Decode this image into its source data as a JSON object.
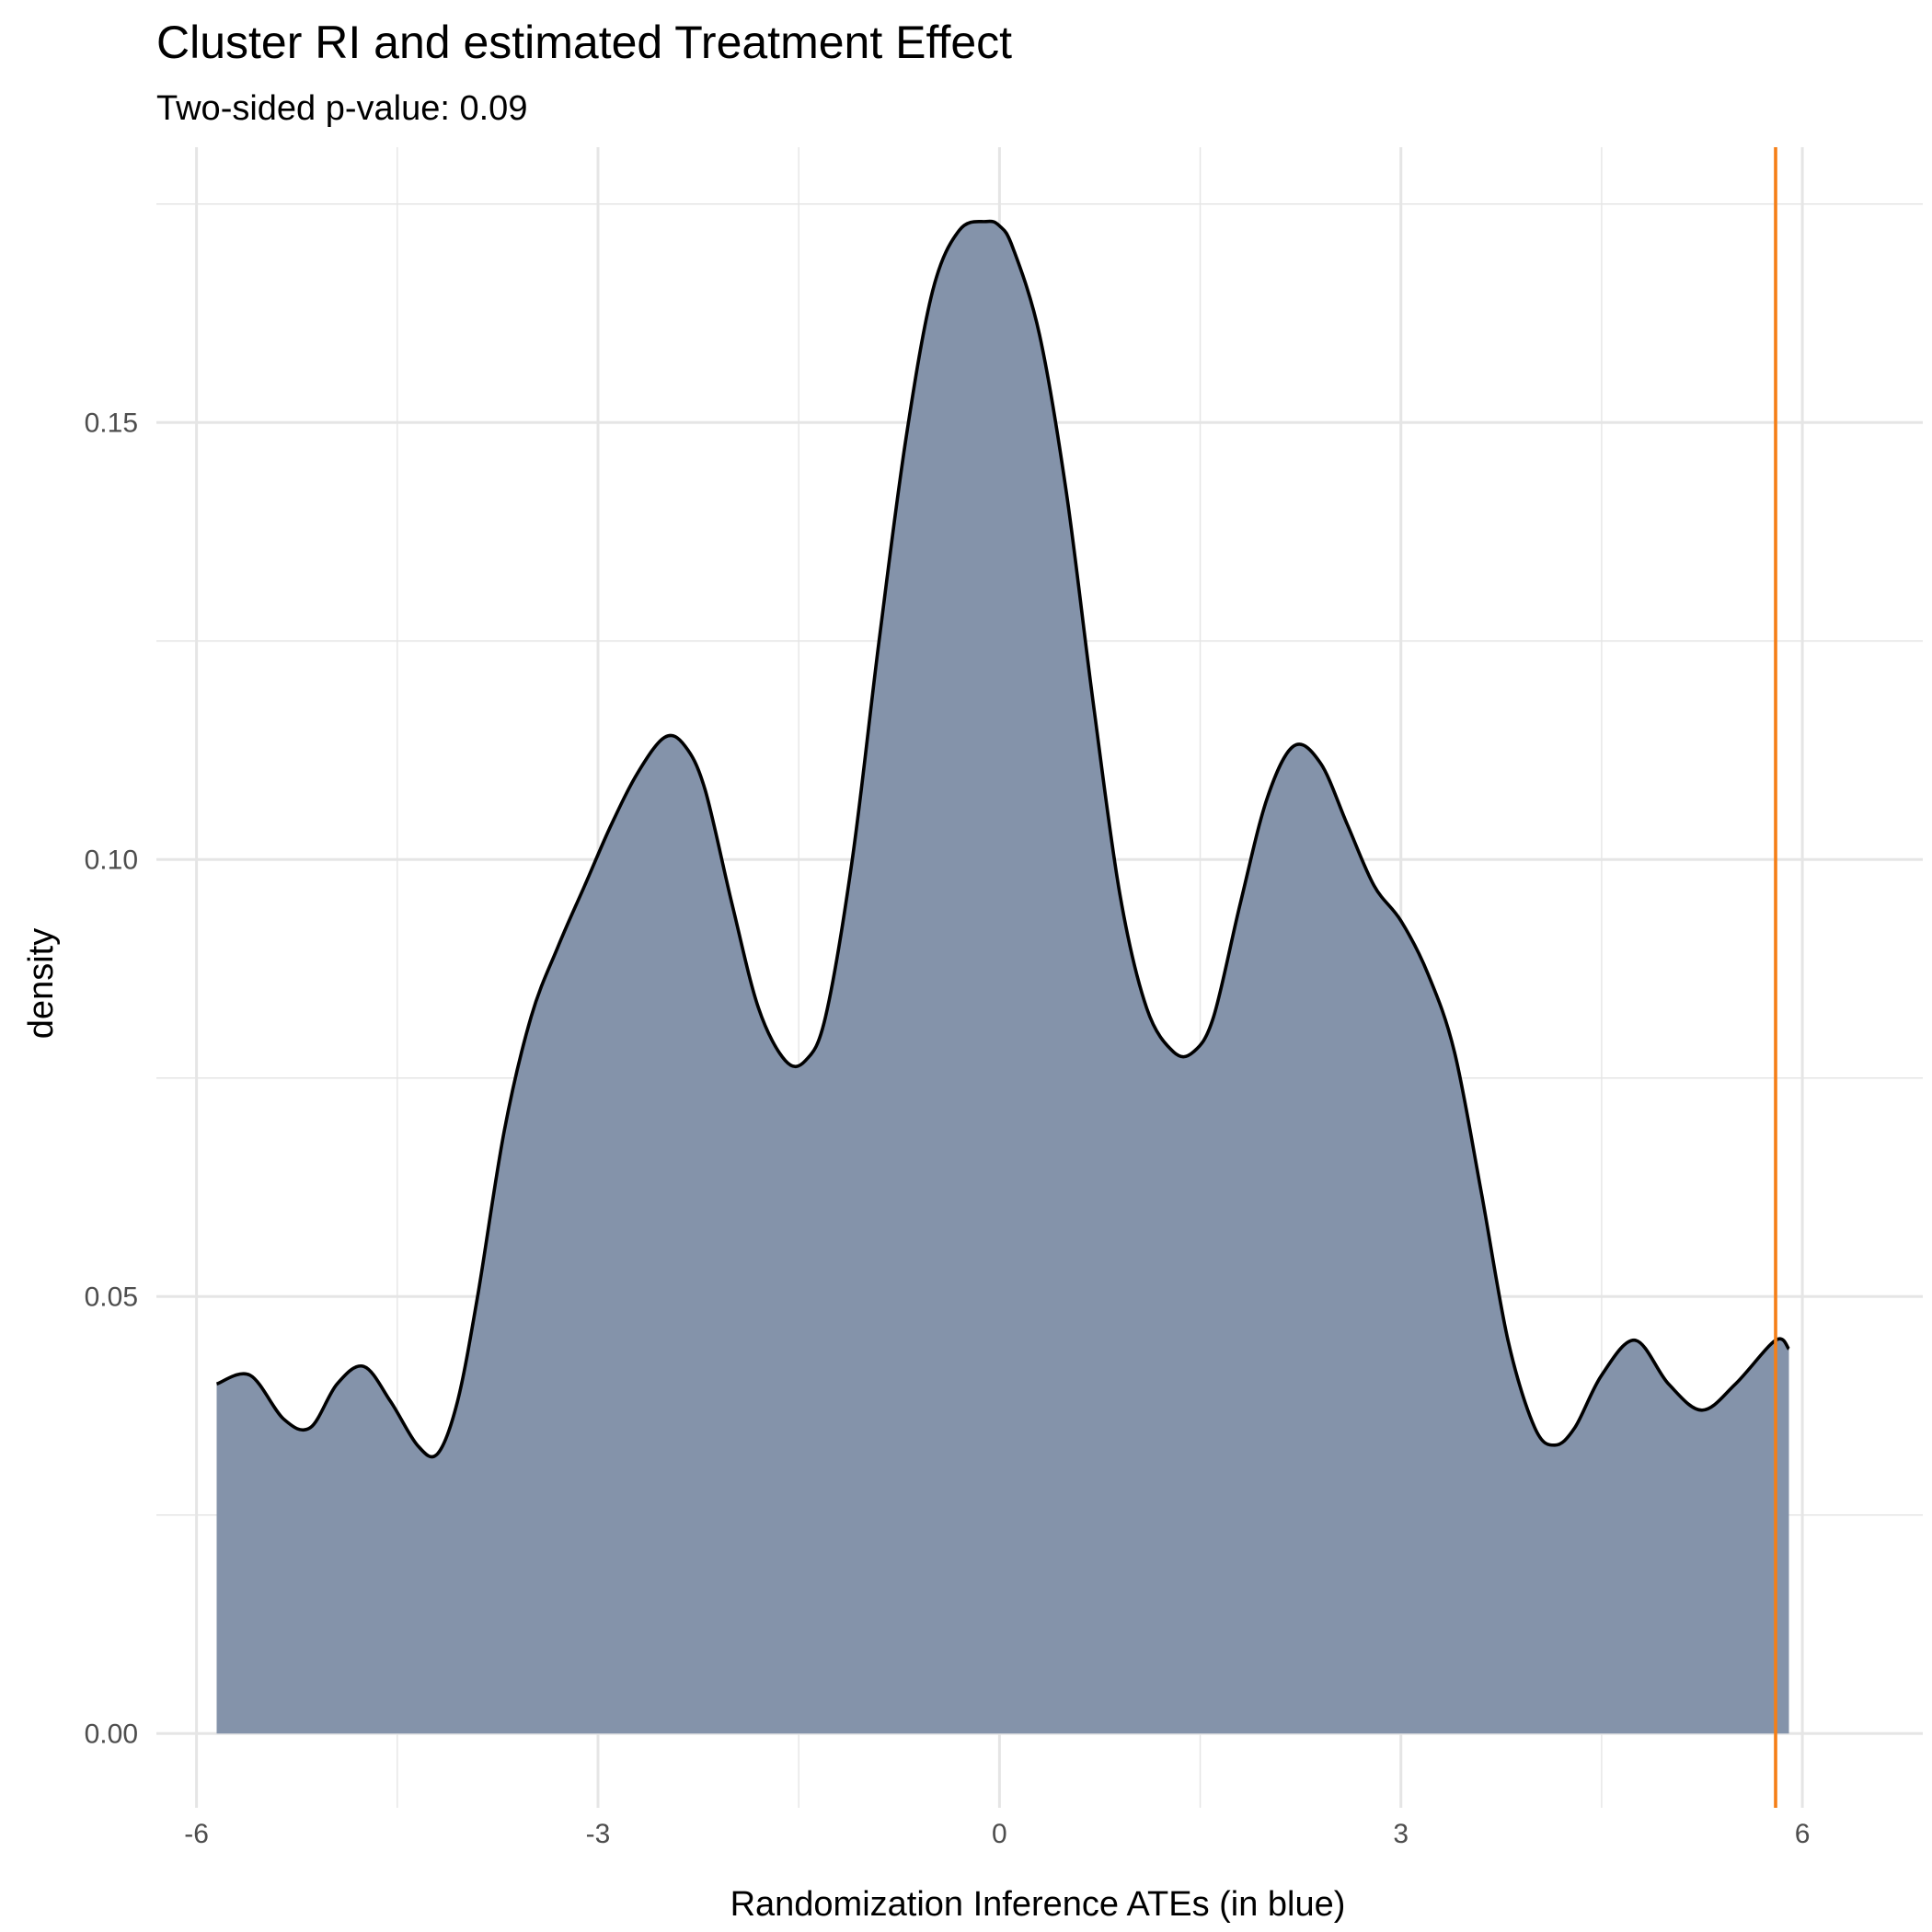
{
  "chart_data": {
    "type": "area",
    "title": "Cluster RI and estimated Treatment Effect",
    "subtitle": "Two-sided p-value: 0.09",
    "xlabel": "Randomization Inference ATEs (in blue)",
    "ylabel": "density",
    "xlim": [
      -6.3,
      6.9
    ],
    "ylim": [
      -0.0085,
      0.1815
    ],
    "x_ticks": [
      -6,
      -3,
      0,
      3,
      6
    ],
    "x_tick_labels": [
      "-6",
      "-3",
      "0",
      "3",
      "6"
    ],
    "y_ticks": [
      0,
      0.05,
      0.1,
      0.15
    ],
    "y_tick_labels": [
      "0.00",
      "0.05",
      "0.10",
      "0.15"
    ],
    "grid": true,
    "fill_color": "#8090a7",
    "line_color": "#000000",
    "reference_line": {
      "x": 5.8,
      "color": "#f57f17"
    },
    "series": [
      {
        "x": [
          -5.85,
          -5.6,
          -5.35,
          -5.15,
          -4.95,
          -4.75,
          -4.55,
          -4.35,
          -4.2,
          -4.05,
          -3.9,
          -3.7,
          -3.5,
          -3.3,
          -3.1,
          -2.9,
          -2.7,
          -2.5,
          -2.35,
          -2.2,
          -2.0,
          -1.8,
          -1.6,
          -1.45,
          -1.3,
          -1.1,
          -0.9,
          -0.7,
          -0.5,
          -0.3,
          -0.1,
          0.0,
          0.1,
          0.3,
          0.5,
          0.7,
          0.9,
          1.1,
          1.3,
          1.45,
          1.6,
          1.8,
          2.0,
          2.2,
          2.4,
          2.6,
          2.8,
          3.0,
          3.2,
          3.4,
          3.6,
          3.8,
          4.0,
          4.15,
          4.3,
          4.5,
          4.75,
          5.0,
          5.25,
          5.5,
          5.8,
          5.9
        ],
        "y": [
          0.04,
          0.041,
          0.036,
          0.035,
          0.04,
          0.042,
          0.038,
          0.033,
          0.032,
          0.038,
          0.05,
          0.069,
          0.082,
          0.09,
          0.097,
          0.104,
          0.11,
          0.114,
          0.113,
          0.108,
          0.095,
          0.083,
          0.077,
          0.077,
          0.082,
          0.1,
          0.125,
          0.148,
          0.165,
          0.172,
          0.173,
          0.1725,
          0.17,
          0.16,
          0.142,
          0.118,
          0.096,
          0.083,
          0.078,
          0.078,
          0.082,
          0.095,
          0.107,
          0.113,
          0.111,
          0.104,
          0.097,
          0.093,
          0.087,
          0.078,
          0.062,
          0.045,
          0.035,
          0.033,
          0.035,
          0.041,
          0.045,
          0.04,
          0.037,
          0.04,
          0.045,
          0.044
        ]
      }
    ]
  }
}
